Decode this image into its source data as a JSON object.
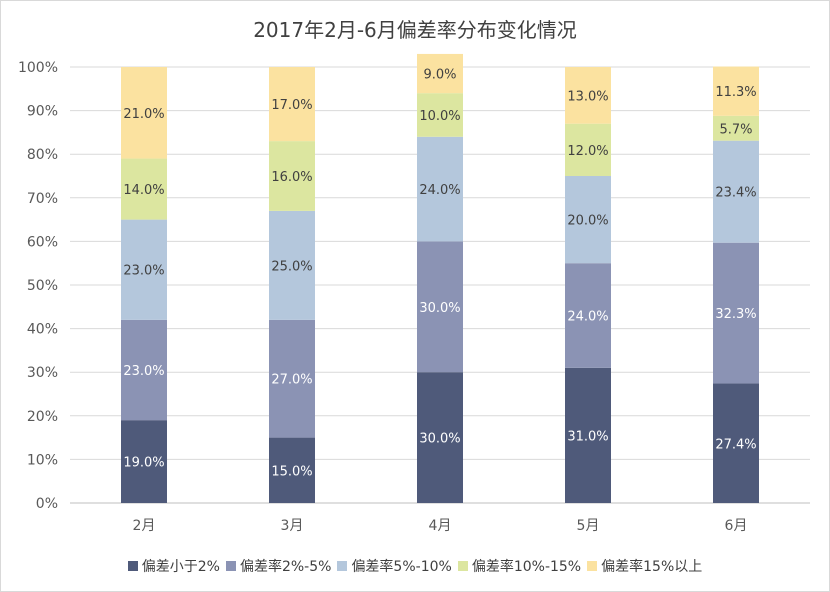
{
  "chart_data": {
    "type": "bar",
    "stacked": true,
    "percent_stacked": true,
    "title": "2017年2月-6月偏差率分布变化情况",
    "categories": [
      "2月",
      "3月",
      "4月",
      "5月",
      "6月"
    ],
    "ylim": [
      0,
      100
    ],
    "yticks": [
      0,
      10,
      20,
      30,
      40,
      50,
      60,
      70,
      80,
      90,
      100
    ],
    "ytick_labels": [
      "0%",
      "10%",
      "20%",
      "30%",
      "40%",
      "50%",
      "60%",
      "70%",
      "80%",
      "90%",
      "100%"
    ],
    "grid": true,
    "legend_position": "bottom",
    "series": [
      {
        "name": "偏差小于2%",
        "color": "#4f5a7a",
        "label_color": "#ffffff",
        "values": [
          19.0,
          15.0,
          30.0,
          31.0,
          27.4
        ],
        "labels": [
          "19.0%",
          "15.0%",
          "30.0%",
          "31.0%",
          "27.4%"
        ]
      },
      {
        "name": "偏差率2%-5%",
        "color": "#8b93b4",
        "label_color": "#ffffff",
        "values": [
          23.0,
          27.0,
          30.0,
          24.0,
          32.3
        ],
        "labels": [
          "23.0%",
          "27.0%",
          "30.0%",
          "24.0%",
          "32.3%"
        ]
      },
      {
        "name": "偏差率5%-10%",
        "color": "#b4c7dc",
        "label_color": "#404040",
        "values": [
          23.0,
          25.0,
          24.0,
          20.0,
          23.4
        ],
        "labels": [
          "23.0%",
          "25.0%",
          "24.0%",
          "20.0%",
          "23.4%"
        ]
      },
      {
        "name": "偏差率10%-15%",
        "color": "#dce6a0",
        "label_color": "#404040",
        "values": [
          14.0,
          16.0,
          10.0,
          12.0,
          5.7
        ],
        "labels": [
          "14.0%",
          "16.0%",
          "10.0%",
          "12.0%",
          "5.7%"
        ]
      },
      {
        "name": "偏差率15%以上",
        "color": "#fbe2a0",
        "label_color": "#404040",
        "values": [
          21.0,
          17.0,
          9.0,
          13.0,
          11.3
        ],
        "labels": [
          "21.0%",
          "17.0%",
          "9.0%",
          "13.0%",
          "11.3%"
        ]
      }
    ]
  }
}
